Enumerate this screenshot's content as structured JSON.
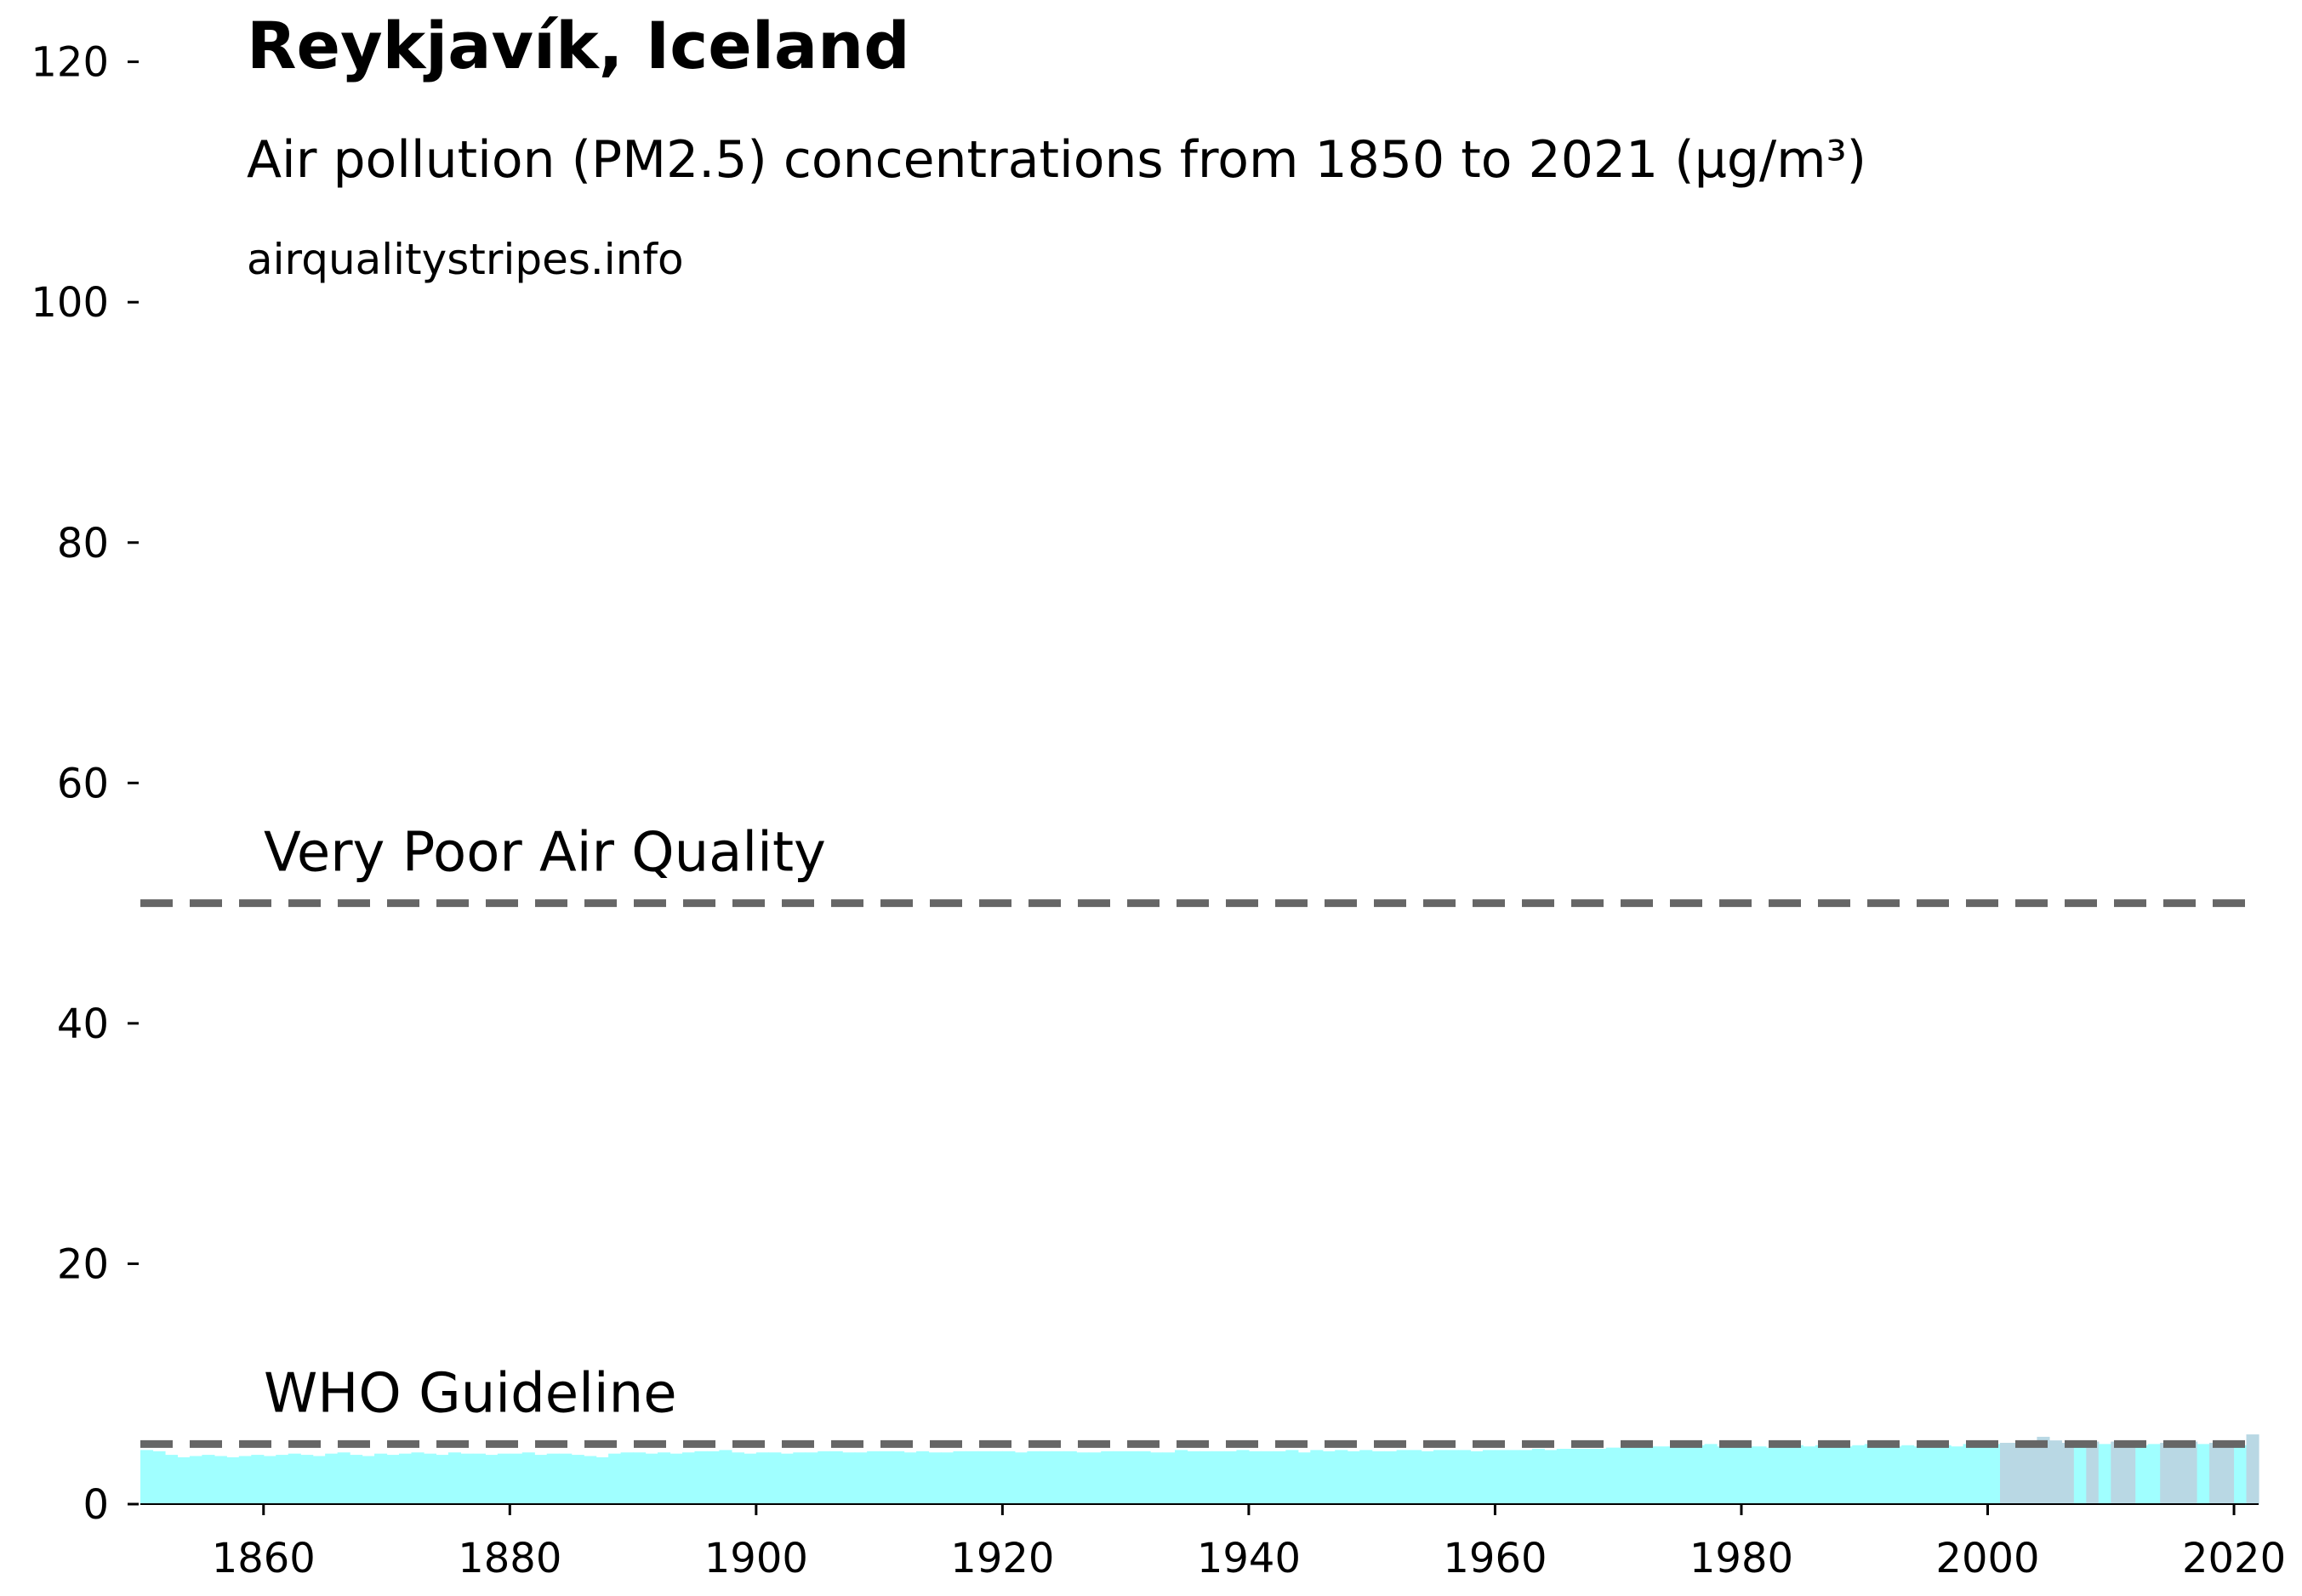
{
  "chart_data": {
    "type": "bar",
    "title": "Reykjavík, Iceland",
    "subtitle": "Air pollution (PM2.5) concentrations from 1850 to 2021 (µg/m³)",
    "source": "airqualitystripes.info",
    "xlabel": "",
    "ylabel": "",
    "xlim": [
      1850,
      2022
    ],
    "ylim": [
      0,
      125
    ],
    "x_ticks": [
      1860,
      1880,
      1900,
      1920,
      1940,
      1960,
      1980,
      2000,
      2020
    ],
    "y_ticks": [
      0,
      20,
      40,
      60,
      80,
      100,
      120
    ],
    "grid": false,
    "legend": "none",
    "reference_lines": [
      {
        "label": "Very Poor Air Quality",
        "value": 50,
        "style": "dashed",
        "color": "#666666"
      },
      {
        "label": "WHO Guideline",
        "value": 5,
        "style": "dashed",
        "color": "#666666"
      }
    ],
    "colors": {
      "low": "#a0ffff",
      "above_guideline": "#b9d8e4",
      "axis": "#000000"
    },
    "x": [
      1850,
      1851,
      1852,
      1853,
      1854,
      1855,
      1856,
      1857,
      1858,
      1859,
      1860,
      1861,
      1862,
      1863,
      1864,
      1865,
      1866,
      1867,
      1868,
      1869,
      1870,
      1871,
      1872,
      1873,
      1874,
      1875,
      1876,
      1877,
      1878,
      1879,
      1880,
      1881,
      1882,
      1883,
      1884,
      1885,
      1886,
      1887,
      1888,
      1889,
      1890,
      1891,
      1892,
      1893,
      1894,
      1895,
      1896,
      1897,
      1898,
      1899,
      1900,
      1901,
      1902,
      1903,
      1904,
      1905,
      1906,
      1907,
      1908,
      1909,
      1910,
      1911,
      1912,
      1913,
      1914,
      1915,
      1916,
      1917,
      1918,
      1919,
      1920,
      1921,
      1922,
      1923,
      1924,
      1925,
      1926,
      1927,
      1928,
      1929,
      1930,
      1931,
      1932,
      1933,
      1934,
      1935,
      1936,
      1937,
      1938,
      1939,
      1940,
      1941,
      1942,
      1943,
      1944,
      1945,
      1946,
      1947,
      1948,
      1949,
      1950,
      1951,
      1952,
      1953,
      1954,
      1955,
      1956,
      1957,
      1958,
      1959,
      1960,
      1961,
      1962,
      1963,
      1964,
      1965,
      1966,
      1967,
      1968,
      1969,
      1970,
      1971,
      1972,
      1973,
      1974,
      1975,
      1976,
      1977,
      1978,
      1979,
      1980,
      1981,
      1982,
      1983,
      1984,
      1985,
      1986,
      1987,
      1988,
      1989,
      1990,
      1991,
      1992,
      1993,
      1994,
      1995,
      1996,
      1997,
      1998,
      1999,
      2000,
      2001,
      2002,
      2003,
      2004,
      2005,
      2006,
      2007,
      2008,
      2009,
      2010,
      2011,
      2012,
      2013,
      2014,
      2015,
      2016,
      2017,
      2018,
      2019,
      2020,
      2021
    ],
    "values": [
      4.5,
      4.4,
      4.1,
      3.9,
      4.0,
      4.1,
      4.0,
      3.9,
      4.0,
      4.1,
      4.0,
      4.1,
      4.2,
      4.1,
      4.0,
      4.2,
      4.3,
      4.1,
      4.0,
      4.2,
      4.1,
      4.2,
      4.3,
      4.2,
      4.1,
      4.3,
      4.2,
      4.2,
      4.1,
      4.2,
      4.2,
      4.3,
      4.1,
      4.2,
      4.2,
      4.1,
      4.0,
      3.9,
      4.2,
      4.3,
      4.3,
      4.2,
      4.3,
      4.2,
      4.3,
      4.4,
      4.4,
      4.5,
      4.3,
      4.2,
      4.3,
      4.3,
      4.2,
      4.3,
      4.3,
      4.4,
      4.4,
      4.3,
      4.3,
      4.4,
      4.4,
      4.4,
      4.3,
      4.4,
      4.3,
      4.3,
      4.4,
      4.4,
      4.4,
      4.4,
      4.4,
      4.3,
      4.4,
      4.4,
      4.4,
      4.4,
      4.3,
      4.3,
      4.4,
      4.4,
      4.4,
      4.4,
      4.3,
      4.3,
      4.5,
      4.4,
      4.4,
      4.4,
      4.4,
      4.5,
      4.4,
      4.4,
      4.4,
      4.5,
      4.3,
      4.5,
      4.4,
      4.5,
      4.4,
      4.5,
      4.4,
      4.4,
      4.5,
      4.5,
      4.4,
      4.5,
      4.5,
      4.5,
      4.4,
      4.5,
      4.5,
      4.5,
      4.5,
      4.6,
      4.5,
      4.6,
      4.6,
      4.6,
      4.6,
      4.7,
      4.7,
      4.7,
      4.8,
      4.8,
      4.8,
      5.0,
      4.9,
      5.0,
      4.8,
      5.0,
      4.8,
      4.8,
      4.7,
      4.8,
      4.9,
      4.8,
      4.9,
      5.0,
      4.8,
      4.9,
      5.0,
      4.8,
      4.8,
      4.9,
      4.8,
      4.9,
      4.9,
      4.8,
      5.0,
      4.9,
      5.0,
      5.1,
      5.1,
      5.2,
      5.6,
      5.3,
      5.1,
      4.9,
      5.2,
      5.0,
      5.2,
      5.1,
      4.9,
      5.0,
      5.1,
      5.3,
      5.2,
      5.0,
      5.1,
      5.2,
      4.9,
      5.8
    ]
  }
}
